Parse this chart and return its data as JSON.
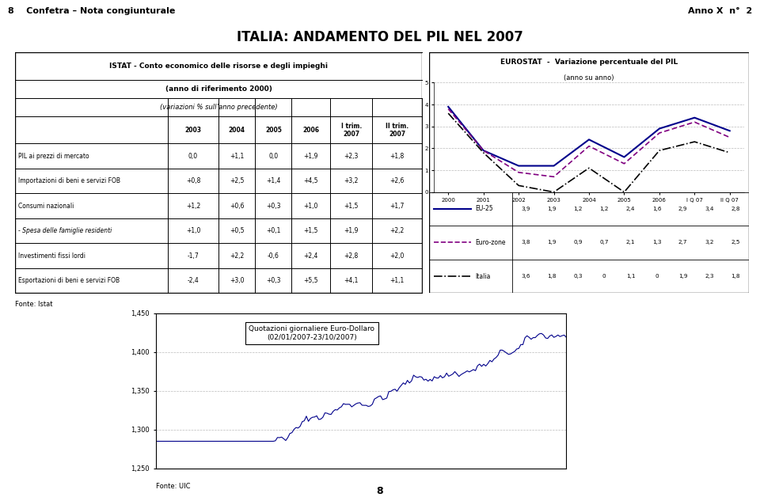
{
  "page_header_left": "8    Confetra – Nota congiunturale",
  "page_header_right": "Anno X  n°  2",
  "main_title": "ITALIA: ANDAMENTO DEL PIL NEL 2007",
  "table_title1": "ISTAT - Conto economico delle risorse e degli impieghi",
  "table_title2": "(anno di riferimento 2000)",
  "table_subtitle": "(variazioni % sull’anno precedente)",
  "col_headers": [
    "2003",
    "2004",
    "2005",
    "2006",
    "I trim.\n2007",
    "II trim.\n2007"
  ],
  "rows": [
    {
      "label": "PIL ai prezzi di mercato",
      "values": [
        "0,0",
        "+1,1",
        "0,0",
        "+1,9",
        "+2,3",
        "+1,8"
      ],
      "italic": false
    },
    {
      "label": "Importazioni di beni e servizi FOB",
      "values": [
        "+0,8",
        "+2,5",
        "+1,4",
        "+4,5",
        "+3,2",
        "+2,6"
      ],
      "italic": false
    },
    {
      "label": "Consumi nazionali",
      "values": [
        "+1,2",
        "+0,6",
        "+0,3",
        "+1,0",
        "+1,5",
        "+1,7"
      ],
      "italic": false
    },
    {
      "label": "- Spesa delle famiglie residenti",
      "values": [
        "+1,0",
        "+0,5",
        "+0,1",
        "+1,5",
        "+1,9",
        "+2,2"
      ],
      "italic": true
    },
    {
      "label": "Investimenti fissi lordi",
      "values": [
        "-1,7",
        "+2,2",
        "-0,6",
        "+2,4",
        "+2,8",
        "+2,0"
      ],
      "italic": false
    },
    {
      "label": "Esportazioni di beni e servizi FOB",
      "values": [
        "-2,4",
        "+3,0",
        "+0,3",
        "+5,5",
        "+4,1",
        "+1,1"
      ],
      "italic": false
    }
  ],
  "fonte_istat": "Fonte: Istat",
  "chart_title1": "EUROSTAT  -  Variazione percentuale del PIL",
  "chart_title2": "(anno su anno)",
  "x_labels": [
    "2000",
    "2001",
    "2002",
    "2003",
    "2004",
    "2005",
    "2006",
    "I Q 07",
    "II Q 07"
  ],
  "eu25": [
    3.9,
    1.9,
    1.2,
    1.2,
    2.4,
    1.6,
    2.9,
    3.4,
    2.8
  ],
  "eurozone": [
    3.8,
    1.9,
    0.9,
    0.7,
    2.1,
    1.3,
    2.7,
    3.2,
    2.5
  ],
  "italia": [
    3.6,
    1.8,
    0.3,
    0.0,
    1.1,
    0.0,
    1.9,
    2.3,
    1.8
  ],
  "legend_data": [
    {
      "label": "EU-25",
      "values": [
        "3,9",
        "1,9",
        "1,2",
        "1,2",
        "2,4",
        "1,6",
        "2,9",
        "3,4",
        "2,8"
      ]
    },
    {
      "label": "Euro-zone",
      "values": [
        "3,8",
        "1,9",
        "0,9",
        "0,7",
        "2,1",
        "1,3",
        "2,7",
        "3,2",
        "2,5"
      ]
    },
    {
      "label": "Italia",
      "values": [
        "3,6",
        "1,8",
        "0,3",
        "0",
        "1,1",
        "0",
        "1,9",
        "2,3",
        "1,8"
      ]
    }
  ],
  "eu25_color": "#00008B",
  "eurozone_color": "#800080",
  "italia_color": "#000000",
  "ylim_chart": [
    0,
    5
  ],
  "yticks_chart": [
    0,
    1,
    2,
    3,
    4,
    5
  ],
  "forex_title": "Quotazioni giornaliere Euro-Dollaro\n(02/01/2007-23/10/2007)",
  "forex_ylim": [
    1.25,
    1.45
  ],
  "forex_yticks": [
    1.25,
    1.3,
    1.35,
    1.4,
    1.45
  ],
  "forex_ytick_labels": [
    "1,250",
    "1,300",
    "1,350",
    "1,400",
    "1,450"
  ],
  "fonte_uic": "Fonte: UIC",
  "page_number": "8",
  "bg_color": "#FFFFFF",
  "header_bg": "#C0C0C0",
  "table_border": "#000000"
}
